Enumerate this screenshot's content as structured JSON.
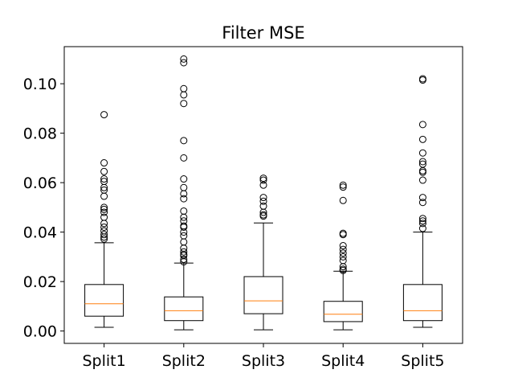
{
  "chart_data": {
    "type": "box",
    "title": "Filter MSE",
    "xlabel": "",
    "ylabel": "",
    "ylim": [
      -0.005,
      0.115
    ],
    "yticks": [
      0.0,
      0.02,
      0.04,
      0.06,
      0.08,
      0.1
    ],
    "ytick_labels": [
      "0.00",
      "0.02",
      "0.04",
      "0.06",
      "0.08",
      "0.10"
    ],
    "categories": [
      "Split1",
      "Split2",
      "Split3",
      "Split4",
      "Split5"
    ],
    "boxes": [
      {
        "whisker_low": 0.0015,
        "q1": 0.006,
        "median": 0.011,
        "q3": 0.0188,
        "whisker_high": 0.0357,
        "outliers": [
          0.0372,
          0.038,
          0.039,
          0.0405,
          0.042,
          0.0435,
          0.046,
          0.048,
          0.0492,
          0.05,
          0.0545,
          0.057,
          0.058,
          0.0605,
          0.0615,
          0.0645,
          0.068,
          0.0875
        ]
      },
      {
        "whisker_low": 0.0005,
        "q1": 0.0042,
        "median": 0.0082,
        "q3": 0.0138,
        "whisker_high": 0.0275,
        "outliers": [
          0.028,
          0.029,
          0.0305,
          0.031,
          0.032,
          0.0335,
          0.036,
          0.0385,
          0.04,
          0.042,
          0.0425,
          0.0445,
          0.046,
          0.0485,
          0.0535,
          0.0555,
          0.058,
          0.0615,
          0.07,
          0.077,
          0.092,
          0.0955,
          0.098,
          0.1085,
          0.11
        ]
      },
      {
        "whisker_low": 0.0005,
        "q1": 0.007,
        "median": 0.0122,
        "q3": 0.022,
        "whisker_high": 0.0437,
        "outliers": [
          0.0465,
          0.047,
          0.048,
          0.0505,
          0.0525,
          0.054,
          0.059,
          0.061,
          0.0618
        ]
      },
      {
        "whisker_low": 0.0005,
        "q1": 0.0038,
        "median": 0.0068,
        "q3": 0.012,
        "whisker_high": 0.0242,
        "outliers": [
          0.0245,
          0.025,
          0.026,
          0.0285,
          0.03,
          0.0315,
          0.033,
          0.0345,
          0.039,
          0.0395,
          0.0528,
          0.0582,
          0.059
        ]
      },
      {
        "whisker_low": 0.0015,
        "q1": 0.0042,
        "median": 0.0082,
        "q3": 0.0188,
        "whisker_high": 0.04,
        "outliers": [
          0.0415,
          0.0435,
          0.0445,
          0.0455,
          0.052,
          0.054,
          0.061,
          0.0642,
          0.0648,
          0.0675,
          0.0685,
          0.072,
          0.0775,
          0.0835,
          0.1015,
          0.102
        ]
      }
    ],
    "colors": {
      "box": "#000000",
      "median": "#ff7f0e",
      "outlier": "#000000"
    }
  }
}
